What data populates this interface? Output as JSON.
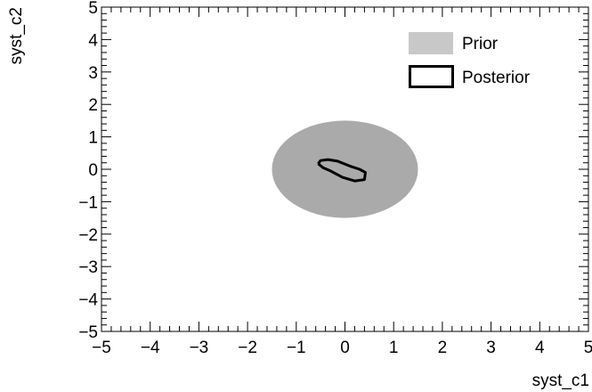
{
  "chart_data": {
    "type": "contour",
    "title": "",
    "xlabel": "syst_c1",
    "ylabel": "syst_c2",
    "xlim": [
      -5,
      5
    ],
    "ylim": [
      -5,
      5
    ],
    "x_ticks": [
      "−5",
      "−4",
      "−3",
      "−2",
      "−1",
      "0",
      "1",
      "2",
      "3",
      "4",
      "5"
    ],
    "y_ticks": [
      "5",
      "4",
      "3",
      "2",
      "1",
      "0",
      "−1",
      "−2",
      "−3",
      "−4",
      "−5"
    ],
    "grid": false,
    "legend_position": "top-right",
    "series": [
      {
        "name": "Prior",
        "kind": "filled-ellipse",
        "color": "#aaaaaa",
        "legend_color": "#c8c8c8",
        "center": [
          0,
          0
        ],
        "semi_axes": [
          1.5,
          1.5
        ]
      },
      {
        "name": "Posterior",
        "kind": "contour-line",
        "color": "#000000",
        "points": [
          [
            -0.55,
            0.17
          ],
          [
            -0.5,
            0.27
          ],
          [
            -0.35,
            0.3
          ],
          [
            -0.15,
            0.25
          ],
          [
            0.1,
            0.1
          ],
          [
            0.3,
            0.0
          ],
          [
            0.42,
            -0.1
          ],
          [
            0.4,
            -0.32
          ],
          [
            0.2,
            -0.36
          ],
          [
            -0.05,
            -0.25
          ],
          [
            -0.3,
            -0.05
          ],
          [
            -0.45,
            0.05
          ],
          [
            -0.55,
            0.17
          ]
        ]
      }
    ]
  }
}
